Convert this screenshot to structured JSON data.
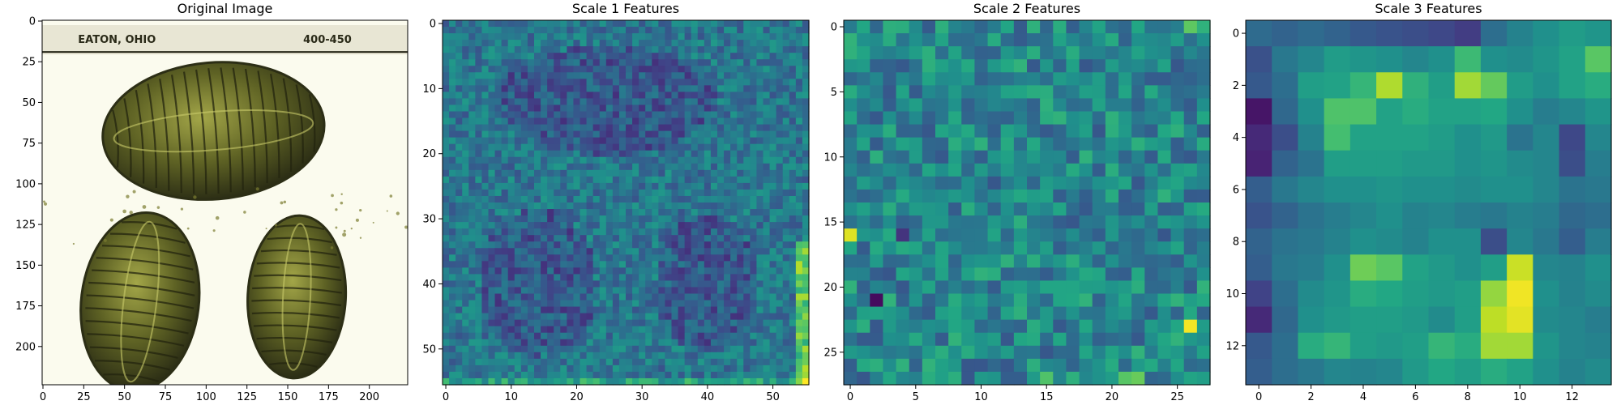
{
  "panels": [
    {
      "title": "Original Image"
    },
    {
      "title": "Scale 1 Features"
    },
    {
      "title": "Scale 2 Features"
    },
    {
      "title": "Scale 3 Features"
    }
  ],
  "chart_data": [
    {
      "type": "heatmap",
      "title": "Original Image",
      "subject": "photograph of three fossil trilobites on a white card",
      "card_label_left": "EATON, OHIO",
      "card_label_right": "400-450",
      "xlim": [
        0,
        224
      ],
      "ylim": [
        224,
        0
      ],
      "xticks": [
        0,
        25,
        50,
        75,
        100,
        125,
        150,
        175,
        200
      ],
      "yticks": [
        0,
        25,
        50,
        75,
        100,
        125,
        150,
        175,
        200
      ],
      "colors": {
        "background": "#fbfbee",
        "fossil_dark": "#2c2e15",
        "fossil_mid": "#5e6224",
        "fossil_light": "#a3a648"
      }
    },
    {
      "type": "heatmap",
      "title": "Scale 1 Features",
      "grid": [
        56,
        56
      ],
      "colormap": "viridis",
      "xlim": [
        0,
        56
      ],
      "ylim": [
        56,
        0
      ],
      "xticks": [
        0,
        10,
        20,
        30,
        40,
        50
      ],
      "yticks": [
        0,
        10,
        20,
        30,
        40,
        50
      ],
      "pattern": "low values over fossil outlines, high values along right edge"
    },
    {
      "type": "heatmap",
      "title": "Scale 2 Features",
      "grid": [
        28,
        28
      ],
      "colormap": "viridis",
      "xlim": [
        0,
        28
      ],
      "ylim": [
        28,
        0
      ],
      "xticks": [
        0,
        5,
        10,
        15,
        20,
        25
      ],
      "yticks": [
        0,
        5,
        10,
        15,
        20,
        25
      ],
      "pattern": "noisy mid values, bright cells near bottom row and top-right"
    },
    {
      "type": "heatmap",
      "title": "Scale 3 Features",
      "grid": [
        14,
        14
      ],
      "colormap": "viridis",
      "xlim": [
        0,
        14
      ],
      "ylim": [
        14,
        0
      ],
      "xticks": [
        0,
        2,
        4,
        6,
        8,
        10,
        12
      ],
      "yticks": [
        0,
        2,
        4,
        6,
        8,
        10,
        12
      ],
      "values": [
        [
          0.35,
          0.32,
          0.35,
          0.32,
          0.28,
          0.26,
          0.24,
          0.22,
          0.18,
          0.36,
          0.44,
          0.5,
          0.55,
          0.52
        ],
        [
          0.25,
          0.4,
          0.46,
          0.55,
          0.52,
          0.5,
          0.46,
          0.5,
          0.68,
          0.5,
          0.48,
          0.52,
          0.58,
          0.74
        ],
        [
          0.28,
          0.36,
          0.56,
          0.58,
          0.66,
          0.88,
          0.64,
          0.56,
          0.86,
          0.76,
          0.55,
          0.5,
          0.58,
          0.62
        ],
        [
          0.06,
          0.34,
          0.5,
          0.72,
          0.72,
          0.58,
          0.62,
          0.58,
          0.58,
          0.6,
          0.5,
          0.42,
          0.46,
          0.52
        ],
        [
          0.12,
          0.24,
          0.44,
          0.7,
          0.58,
          0.58,
          0.58,
          0.55,
          0.5,
          0.54,
          0.38,
          0.46,
          0.22,
          0.46
        ],
        [
          0.1,
          0.32,
          0.38,
          0.56,
          0.56,
          0.56,
          0.54,
          0.54,
          0.5,
          0.52,
          0.48,
          0.46,
          0.24,
          0.42
        ],
        [
          0.3,
          0.4,
          0.46,
          0.5,
          0.5,
          0.52,
          0.5,
          0.5,
          0.48,
          0.5,
          0.5,
          0.46,
          0.38,
          0.4
        ],
        [
          0.26,
          0.32,
          0.38,
          0.42,
          0.46,
          0.5,
          0.44,
          0.46,
          0.42,
          0.4,
          0.44,
          0.42,
          0.34,
          0.36
        ],
        [
          0.32,
          0.38,
          0.4,
          0.44,
          0.5,
          0.48,
          0.44,
          0.5,
          0.5,
          0.24,
          0.46,
          0.4,
          0.3,
          0.42
        ],
        [
          0.3,
          0.4,
          0.42,
          0.5,
          0.78,
          0.74,
          0.58,
          0.54,
          0.5,
          0.56,
          0.92,
          0.46,
          0.44,
          0.5
        ],
        [
          0.2,
          0.36,
          0.48,
          0.52,
          0.62,
          0.6,
          0.56,
          0.54,
          0.56,
          0.84,
          0.98,
          0.5,
          0.44,
          0.48
        ],
        [
          0.12,
          0.34,
          0.5,
          0.54,
          0.56,
          0.56,
          0.54,
          0.48,
          0.56,
          0.9,
          0.96,
          0.48,
          0.46,
          0.42
        ],
        [
          0.28,
          0.36,
          0.62,
          0.66,
          0.56,
          0.54,
          0.56,
          0.66,
          0.62,
          0.86,
          0.86,
          0.52,
          0.46,
          0.44
        ],
        [
          0.3,
          0.36,
          0.4,
          0.46,
          0.44,
          0.46,
          0.54,
          0.6,
          0.56,
          0.62,
          0.58,
          0.5,
          0.44,
          0.48
        ]
      ]
    }
  ]
}
